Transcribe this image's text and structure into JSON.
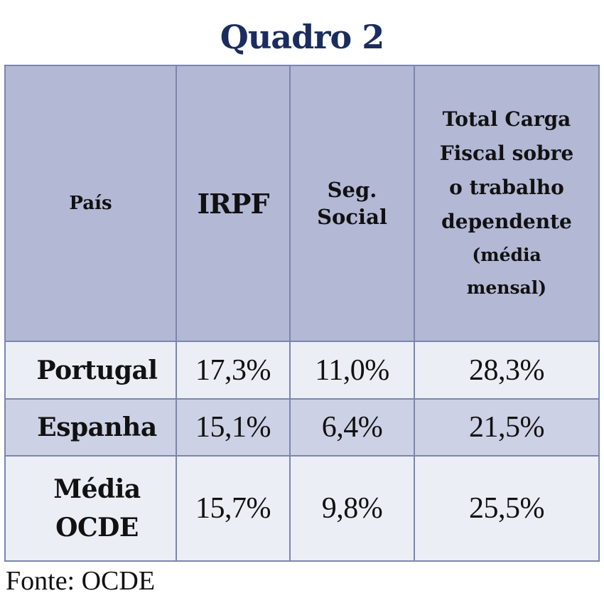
{
  "title": "Quadro 2",
  "headers": {
    "pais": "País",
    "irpf": "IRPF",
    "seg_line1": "Seg.",
    "seg_line2": "Social",
    "total_lines": [
      "Total Carga",
      "Fiscal sobre",
      "o trabalho",
      "dependente"
    ],
    "total_sub_lines": [
      "(média",
      "mensal)"
    ]
  },
  "rows": [
    {
      "country": "Portugal",
      "irpf": "17,3%",
      "seg_social": "11,0%",
      "total": "28,3%"
    },
    {
      "country": "Espanha",
      "irpf": "15,1%",
      "seg_social": "6,4%",
      "total": "21,5%"
    },
    {
      "country_line1": "Média",
      "country_line2": "OCDE",
      "irpf": "15,7%",
      "seg_social": "9,8%",
      "total": "25,5%"
    }
  ],
  "source": "Fonte: OCDE",
  "colors": {
    "title": "#1b2d5e",
    "header_bg": "#b3b8d5",
    "row_light": "#eceef6",
    "row_dark": "#cdd1e5",
    "border": "#7b86ad"
  }
}
